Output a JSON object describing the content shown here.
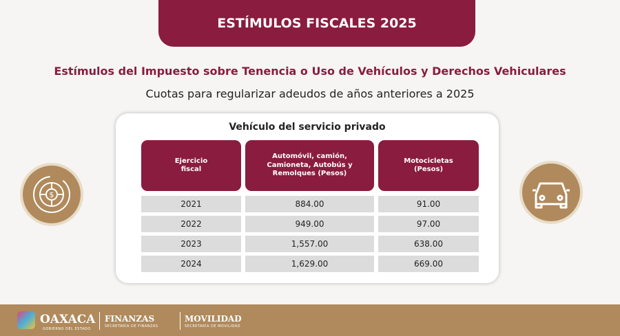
{
  "banner": {
    "title": "ESTÍMULOS FISCALES 2025"
  },
  "heading": "Estímulos del Impuesto sobre Tenencia o Uso de Vehículos y Derechos Vehiculares",
  "subheading": "Cuotas para regularizar adeudos de años anteriores a 2025",
  "table": {
    "title": "Vehículo del servicio privado",
    "headers": [
      "Ejercicio fiscal",
      "Automóvil, camión, Camioneta, Autobús y Remolques (Pesos)",
      "Motocicletas (Pesos)"
    ],
    "rows": [
      [
        "2021",
        "884.00",
        "91.00"
      ],
      [
        "2022",
        "949.00",
        "97.00"
      ],
      [
        "2023",
        "1,557.00",
        "638.00"
      ],
      [
        "2024",
        "1,629.00",
        "669.00"
      ]
    ]
  },
  "icons": {
    "left": "money-wheel-icon",
    "right": "car-icon"
  },
  "footer": {
    "oaxaca": "OAXACA",
    "oaxaca_sub": "GOBIERNO DEL ESTADO",
    "finanzas": "FINANZAS",
    "finanzas_sub": "SECRETARÍA DE FINANZAS",
    "movilidad": "MOVILIDAD",
    "movilidad_sub": "SECRETARÍA DE MOVILIDAD"
  },
  "colors": {
    "maroon": "#8a1c3f",
    "gold": "#b08a5c"
  }
}
